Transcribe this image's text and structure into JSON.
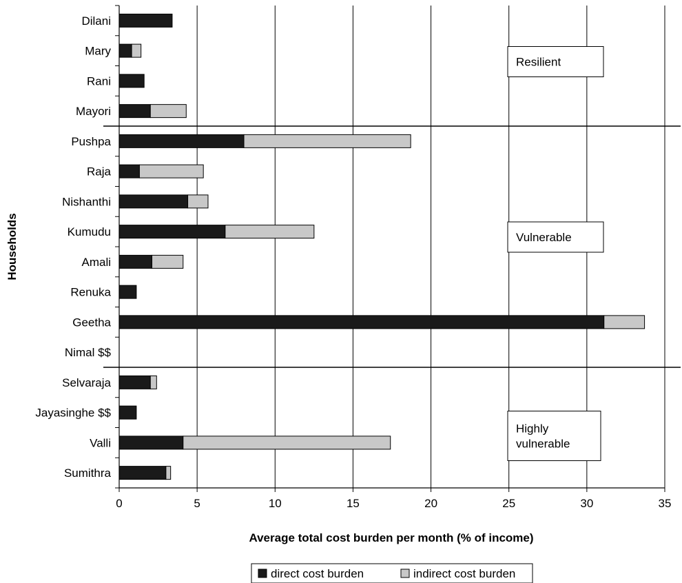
{
  "chart_data": {
    "type": "bar",
    "orientation": "horizontal",
    "stacked": true,
    "xlabel": "Average total cost burden per month (% of income)",
    "ylabel": "Households",
    "xlim": [
      0,
      35
    ],
    "xticks": [
      0,
      5,
      10,
      15,
      20,
      25,
      30,
      35
    ],
    "grid": "vertical",
    "legend_position": "bottom",
    "categories": [
      "Dilani",
      "Mary",
      "Rani",
      "Mayori",
      "Pushpa",
      "Raja",
      "Nishanthi",
      "Kumudu",
      "Amali",
      "Renuka",
      "Geetha",
      "Nimal $$",
      "Selvaraja",
      "Jayasinghe $$",
      "Valli",
      "Sumithra"
    ],
    "series": [
      {
        "name": "direct cost burden",
        "color": "#1a1a1a",
        "values": [
          3.4,
          0.8,
          1.6,
          2.0,
          8.0,
          1.3,
          4.4,
          6.8,
          2.1,
          1.1,
          31.1,
          0,
          2.0,
          1.1,
          4.1,
          3.0
        ]
      },
      {
        "name": "indirect cost burden",
        "color": "#c8c8c8",
        "values": [
          0,
          0.6,
          0,
          2.3,
          10.7,
          4.1,
          1.3,
          5.7,
          2.0,
          0,
          2.6,
          0,
          0.4,
          0,
          13.3,
          0.3
        ]
      }
    ],
    "groups": [
      {
        "label": "Resilient",
        "start": 0,
        "end": 3
      },
      {
        "label": "Vulnerable",
        "start": 4,
        "end": 11
      },
      {
        "label": "Highly vulnerable",
        "start": 12,
        "end": 15
      }
    ]
  }
}
